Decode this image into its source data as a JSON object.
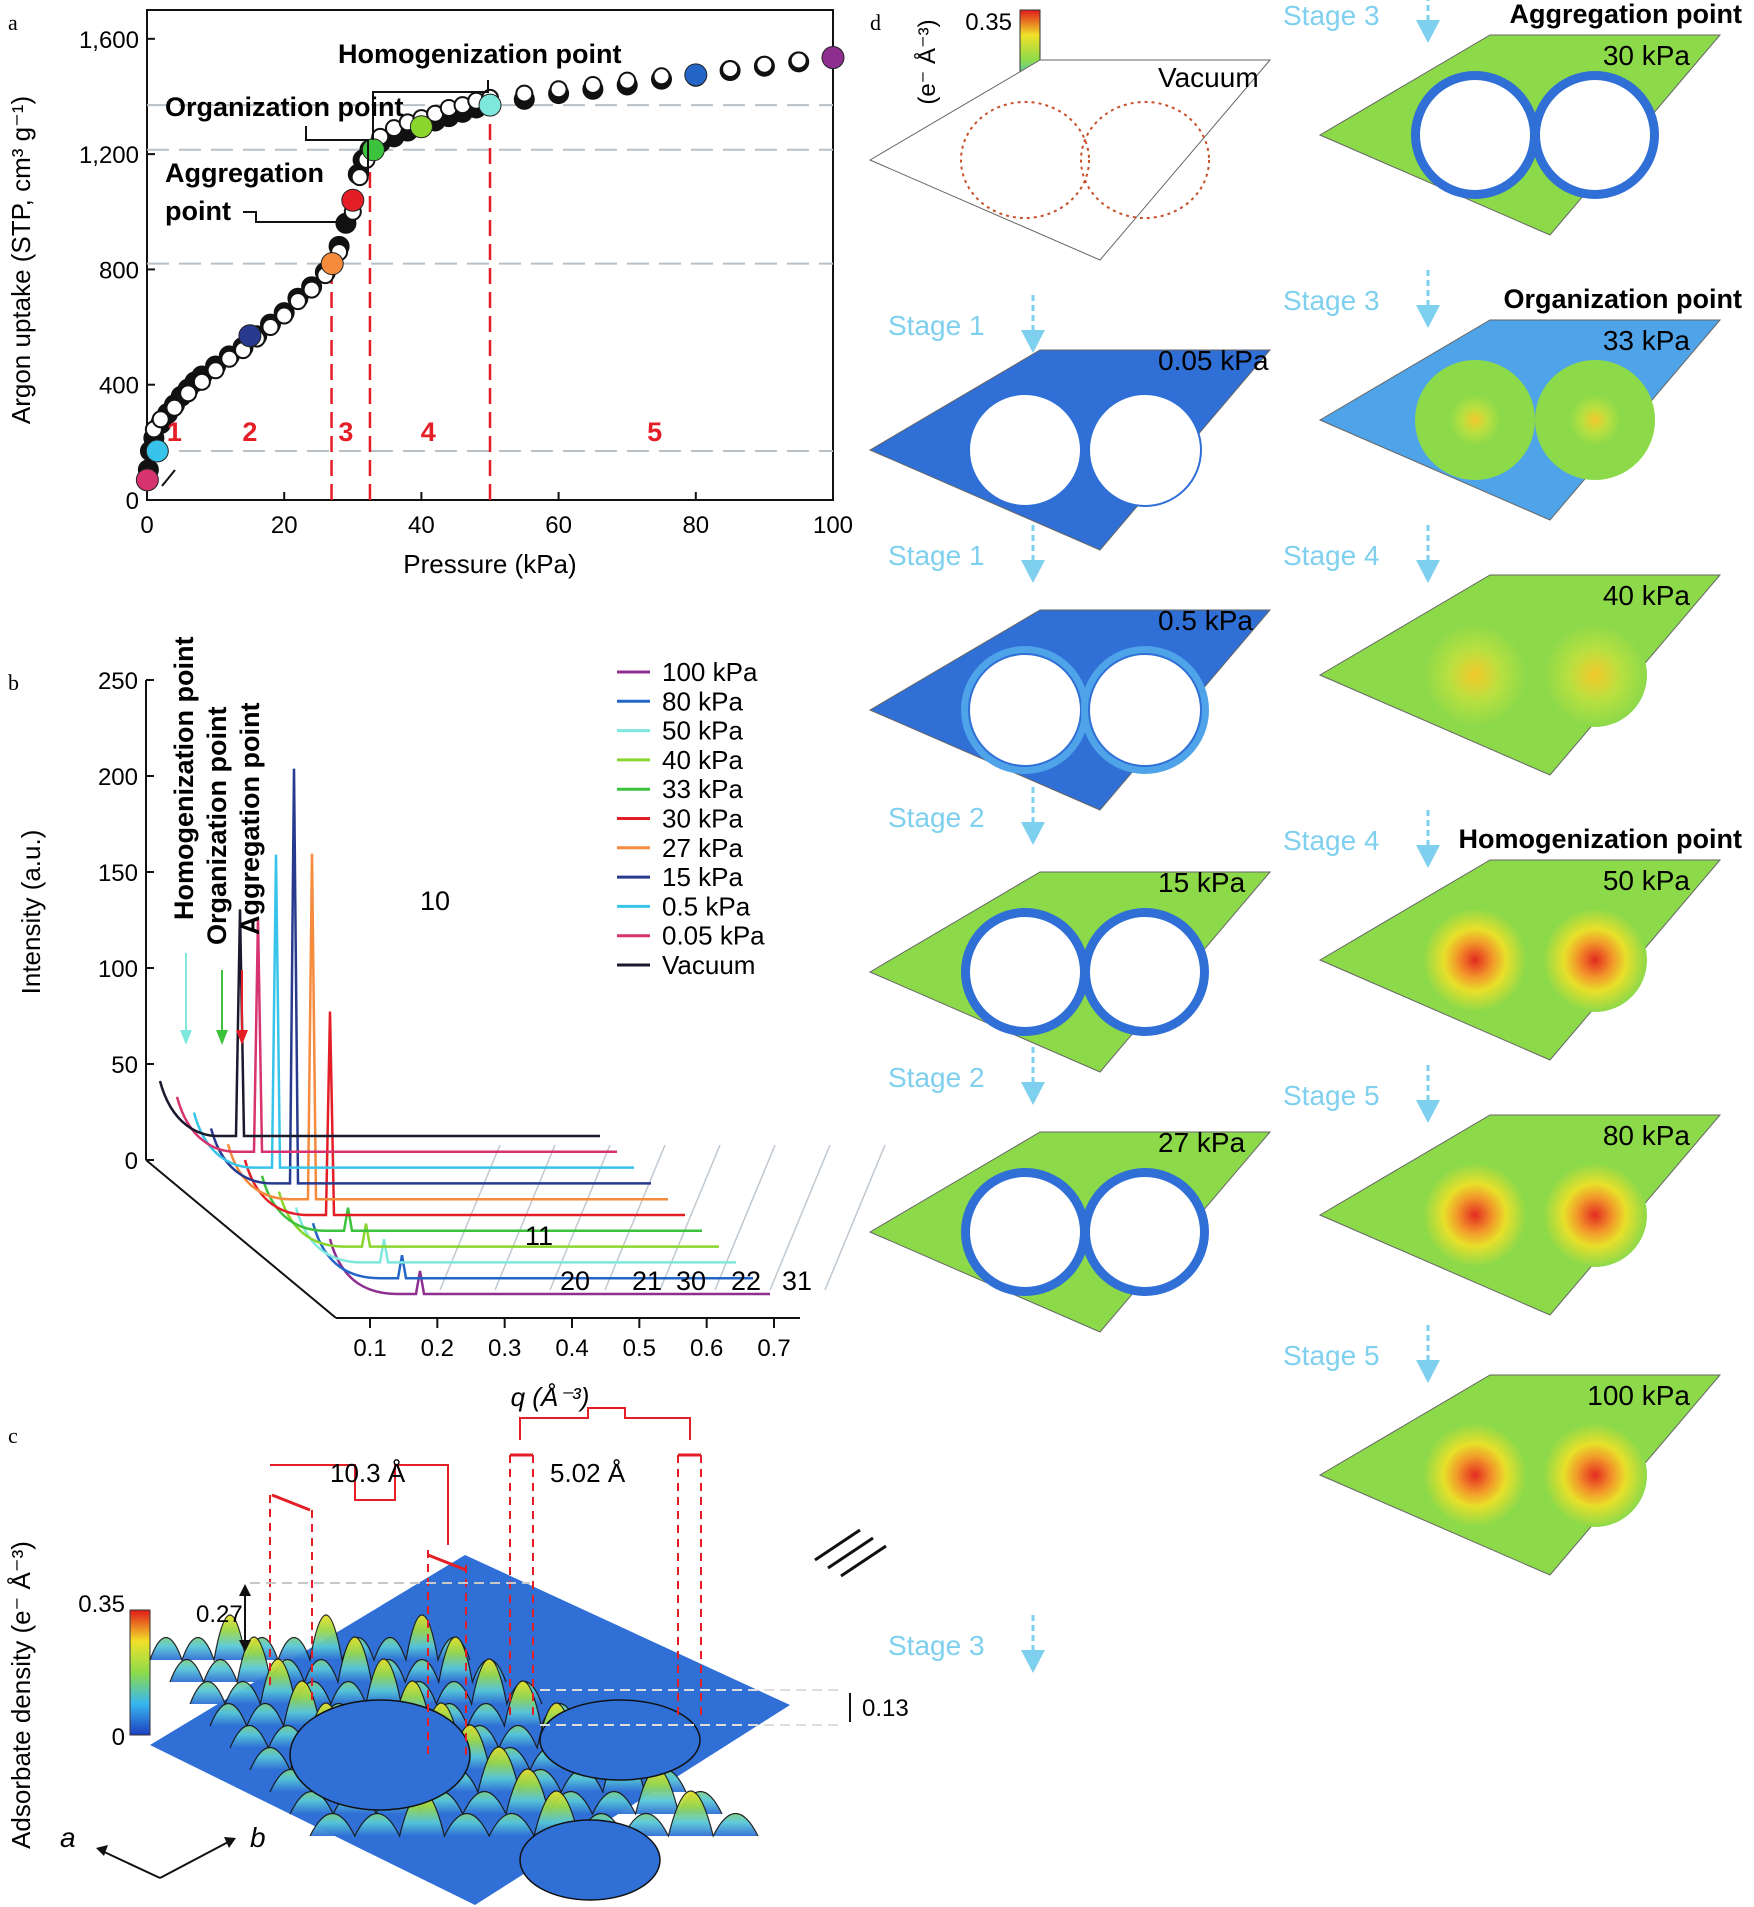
{
  "panel_letters": [
    "a",
    "b",
    "c",
    "d"
  ],
  "chart_data": [
    {
      "type": "scatter",
      "panel": "a",
      "xlabel": "Pressure (kPa)",
      "ylabel": "Argon uptake (STP, cm³ g⁻¹)",
      "xlim": [
        0,
        100
      ],
      "ylim": [
        0,
        1700
      ],
      "xticks": [
        "0",
        "20",
        "40",
        "60",
        "80",
        "100"
      ],
      "yticks": [
        "0",
        "400",
        "800",
        "1,200",
        "1,600"
      ],
      "annotations": [
        "Homogenization point",
        "Organization point",
        "Aggregation point"
      ],
      "stage_labels": [
        "1",
        "2",
        "3",
        "4",
        "5"
      ],
      "stage_boundaries": [
        26.9,
        32.5,
        50.0
      ],
      "highlight_levels": [
        170,
        820,
        1215,
        1370
      ],
      "series": [
        {
          "values": [
            [
              0.05,
              70
            ],
            [
              0.2,
              105
            ],
            [
              0.5,
              170
            ],
            [
              1,
              215
            ],
            [
              2,
              265
            ],
            [
              3,
              300
            ],
            [
              4,
              330
            ],
            [
              5,
              360
            ],
            [
              6,
              385
            ],
            [
              7,
              410
            ],
            [
              8,
              430
            ],
            [
              10,
              465
            ],
            [
              12,
              500
            ],
            [
              14,
              530
            ],
            [
              16,
              570
            ],
            [
              18,
              610
            ],
            [
              20,
              650
            ],
            [
              22,
              700
            ],
            [
              24,
              740
            ],
            [
              26,
              790
            ],
            [
              27,
              820
            ],
            [
              28,
              880
            ],
            [
              29,
              960
            ],
            [
              30,
              1040
            ],
            [
              30.8,
              1130
            ],
            [
              31.5,
              1180
            ],
            [
              32.5,
              1215
            ],
            [
              34,
              1240
            ],
            [
              36,
              1260
            ],
            [
              38,
              1280
            ],
            [
              40,
              1295
            ],
            [
              42,
              1315
            ],
            [
              44,
              1330
            ],
            [
              46,
              1345
            ],
            [
              48,
              1360
            ],
            [
              50,
              1370
            ],
            [
              55,
              1390
            ],
            [
              60,
              1410
            ],
            [
              65,
              1425
            ],
            [
              70,
              1440
            ],
            [
              75,
              1460
            ],
            [
              80,
              1470
            ],
            [
              85,
              1490
            ],
            [
              90,
              1505
            ],
            [
              95,
              1520
            ],
            [
              100,
              1535
            ]
          ]
        },
        {
          "values": [
            [
              1,
              245
            ],
            [
              2,
              280
            ],
            [
              4,
              320
            ],
            [
              6,
              370
            ],
            [
              8,
              410
            ],
            [
              10,
              450
            ],
            [
              12,
              490
            ],
            [
              14,
              520
            ],
            [
              16,
              560
            ],
            [
              18,
              600
            ],
            [
              20,
              640
            ],
            [
              22,
              690
            ],
            [
              24,
              730
            ],
            [
              26,
              780
            ],
            [
              28,
              860
            ],
            [
              30,
              1000
            ],
            [
              31,
              1120
            ],
            [
              32,
              1180
            ],
            [
              34,
              1260
            ],
            [
              36,
              1290
            ],
            [
              38,
              1310
            ],
            [
              40,
              1325
            ],
            [
              42,
              1340
            ],
            [
              44,
              1360
            ],
            [
              46,
              1370
            ],
            [
              48,
              1385
            ],
            [
              50,
              1395
            ],
            [
              55,
              1410
            ],
            [
              60,
              1425
            ],
            [
              65,
              1440
            ],
            [
              70,
              1455
            ],
            [
              75,
              1470
            ],
            [
              80,
              1480
            ],
            [
              85,
              1495
            ],
            [
              90,
              1510
            ],
            [
              95,
              1525
            ]
          ]
        }
      ],
      "highlighted_points": [
        {
          "x": 0.05,
          "y": 70,
          "color": "#d6336f"
        },
        {
          "x": 1.5,
          "y": 170,
          "color": "#38c4ea"
        },
        {
          "x": 15,
          "y": 570,
          "color": "#283a8e"
        },
        {
          "x": 27,
          "y": 820,
          "color": "#f58b3c"
        },
        {
          "x": 30,
          "y": 1040,
          "color": "#e41e26"
        },
        {
          "x": 33,
          "y": 1215,
          "color": "#3cc23c"
        },
        {
          "x": 40,
          "y": 1295,
          "color": "#8ad62e"
        },
        {
          "x": 50,
          "y": 1370,
          "color": "#7fe8dc"
        },
        {
          "x": 80,
          "y": 1475,
          "color": "#2466c8"
        },
        {
          "x": 100,
          "y": 1535,
          "color": "#8e2f8f"
        }
      ]
    },
    {
      "type": "line",
      "panel": "b",
      "xlabel": "q (Å⁻³)",
      "ylabel": "Intensity (a.u.)",
      "ylim": [
        0,
        250
      ],
      "xticks": [
        "0.1",
        "0.2",
        "0.3",
        "0.4",
        "0.5",
        "0.6",
        "0.7"
      ],
      "yticks": [
        "0",
        "50",
        "100",
        "150",
        "200",
        "250"
      ],
      "annotations": [
        "Homogenization point",
        "Organization point",
        "Aggregation point"
      ],
      "peak_labels": [
        "10",
        "11",
        "20",
        "21",
        "30",
        "22",
        "31"
      ],
      "peak_10_heights": [
        {
          "series": "Vacuum",
          "value": 118
        },
        {
          "series": "0.05 kPa",
          "value": 122
        },
        {
          "series": "0.5 kPa",
          "value": 163
        },
        {
          "series": "15 kPa",
          "value": 216
        },
        {
          "series": "27 kPa",
          "value": 180
        },
        {
          "series": "30 kPa",
          "value": 106
        }
      ],
      "legend": [
        {
          "name": "100 kPa",
          "color": "#8e2f8f"
        },
        {
          "name": "80 kPa",
          "color": "#2466c8"
        },
        {
          "name": "50 kPa",
          "color": "#7fe8dc"
        },
        {
          "name": "40 kPa",
          "color": "#8ad62e"
        },
        {
          "name": "33 kPa",
          "color": "#3cc23c"
        },
        {
          "name": "30 kPa",
          "color": "#e41e26"
        },
        {
          "name": "27 kPa",
          "color": "#f58b3c"
        },
        {
          "name": "15 kPa",
          "color": "#283a8e"
        },
        {
          "name": "0.5 kPa",
          "color": "#38c4ea"
        },
        {
          "name": "0.05 kPa",
          "color": "#d6336f"
        },
        {
          "name": "Vacuum",
          "color": "#1a1a2e"
        }
      ]
    }
  ],
  "panel_c": {
    "ylabel": "Adsorbate density (e⁻ Å⁻³)",
    "colorbar_max": "0.35",
    "colorbar_min": "0",
    "dim1": "10.3 Å",
    "dim2": "5.02 Å",
    "level_high": "0.27",
    "level_low": "0.13",
    "axis_a": "a",
    "axis_b": "b"
  },
  "panel_d": {
    "colorbar_label": "(e⁻ Å⁻³)",
    "colorbar_max": "0.35",
    "colorbar_min": "0",
    "left_column": [
      {
        "stage": "",
        "pressure": "Vacuum",
        "state": "empty"
      },
      {
        "stage": "Stage 1",
        "pressure": "0.05 kPa",
        "state": "low"
      },
      {
        "stage": "Stage 1",
        "pressure": "0.5 kPa",
        "state": "low2"
      },
      {
        "stage": "Stage 2",
        "pressure": "15 kPa",
        "state": "mid"
      },
      {
        "stage": "Stage 2",
        "pressure": "27 kPa",
        "state": "mid2"
      }
    ],
    "left_trailing_stage": "Stage 3",
    "right_column": [
      {
        "stage": "Stage 3",
        "title": "Aggregation point",
        "pressure": "30 kPa",
        "state": "agg"
      },
      {
        "stage": "Stage 3",
        "title": "Organization point",
        "pressure": "33 kPa",
        "state": "org"
      },
      {
        "stage": "Stage 4",
        "title": "",
        "pressure": "40 kPa",
        "state": "hi"
      },
      {
        "stage": "Stage 4",
        "title": "Homogenization point",
        "pressure": "50 kPa",
        "state": "hom"
      },
      {
        "stage": "Stage 5",
        "title": "",
        "pressure": "80 kPa",
        "state": "hom2"
      },
      {
        "stage": "Stage 5",
        "title": "",
        "pressure": "100 kPa",
        "state": "hom3"
      }
    ]
  },
  "colors": {
    "stage_label": "#e41e26",
    "stage_arrow": "#7fd0ee",
    "guide": "#b8c0c8",
    "empty_blue": "#2f6fd6",
    "light_blue": "#4fa3e8",
    "green": "#8cd94a",
    "yellow": "#e8e02a",
    "red": "#e42a22"
  }
}
